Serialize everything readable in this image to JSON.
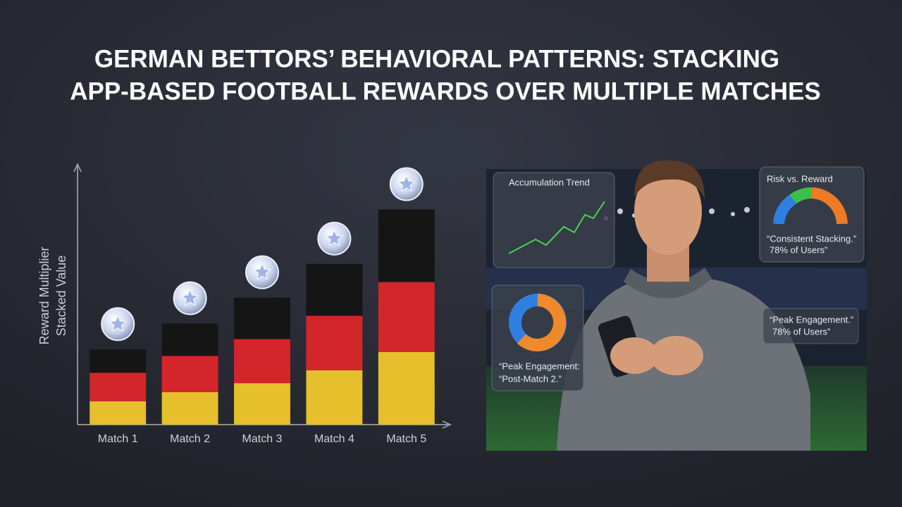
{
  "chart_data": {
    "type": "stacked-bar",
    "title": [
      "GERMAN BETTORS’ BEHAVIORAL PATTERNS: STACKING",
      "APP-BASED FOOTBALL REWARDS OVER MULTIPLE MATCHES"
    ],
    "ylabel": [
      "Reward Multiplier",
      "Stacked Value"
    ],
    "categories": [
      "Match 1",
      "Match 2",
      "Match 3",
      "Match 4",
      "Match 5"
    ],
    "series": [
      {
        "color": "#e6bf2c",
        "values": [
          9,
          12.5,
          16,
          21,
          28
        ]
      },
      {
        "color": "#d3262a",
        "values": [
          11,
          14,
          17,
          21,
          27
        ]
      },
      {
        "color": "#151515",
        "values": [
          9,
          12.5,
          16,
          20,
          28
        ]
      }
    ],
    "ylim": [
      0,
      100
    ]
  },
  "panels": [
    {
      "title": "Accumulation Trend"
    },
    {
      "title": "Risk vs. Reward",
      "lines": [
        "“Consistent Stacking.”",
        "78% of Users”"
      ]
    },
    {
      "lines": [
        "“Peak Engagement.”",
        "78% of Users”"
      ]
    },
    {
      "lines": [
        "“Peak Engagement:",
        "“Post-Match 2.”"
      ]
    }
  ]
}
